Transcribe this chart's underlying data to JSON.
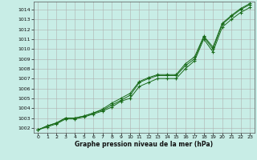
{
  "x": [
    0,
    1,
    2,
    3,
    4,
    5,
    6,
    7,
    8,
    9,
    10,
    11,
    12,
    13,
    14,
    15,
    16,
    17,
    18,
    19,
    20,
    21,
    22,
    23
  ],
  "line1": [
    1001.8,
    1002.2,
    1002.5,
    1003.0,
    1003.0,
    1003.2,
    1003.5,
    1003.8,
    1004.3,
    1004.8,
    1005.3,
    1006.6,
    1007.0,
    1007.3,
    1007.3,
    1007.3,
    1008.3,
    1009.0,
    1011.2,
    1010.0,
    1012.5,
    1013.3,
    1014.0,
    1014.5
  ],
  "line2": [
    1001.8,
    1002.2,
    1002.5,
    1003.0,
    1003.0,
    1003.2,
    1003.5,
    1003.9,
    1004.5,
    1005.0,
    1005.5,
    1006.7,
    1007.1,
    1007.4,
    1007.4,
    1007.4,
    1008.5,
    1009.2,
    1011.3,
    1010.2,
    1012.6,
    1013.4,
    1014.1,
    1014.6
  ],
  "line3": [
    1001.8,
    1002.1,
    1002.4,
    1002.9,
    1002.9,
    1003.1,
    1003.4,
    1003.7,
    1004.1,
    1004.7,
    1005.0,
    1006.2,
    1006.6,
    1007.0,
    1007.0,
    1007.0,
    1008.0,
    1008.8,
    1011.0,
    1009.7,
    1012.2,
    1013.0,
    1013.7,
    1014.2
  ],
  "line_color": "#1a6b1a",
  "bg_color": "#c8ede6",
  "grid_color": "#b0b0b0",
  "xlabel": "Graphe pression niveau de la mer (hPa)",
  "ylim": [
    1001.5,
    1014.8
  ],
  "xlim": [
    -0.5,
    23.5
  ],
  "yticks": [
    1002,
    1003,
    1004,
    1005,
    1006,
    1007,
    1008,
    1009,
    1010,
    1011,
    1012,
    1013,
    1014
  ],
  "xticks": [
    0,
    1,
    2,
    3,
    4,
    5,
    6,
    7,
    8,
    9,
    10,
    11,
    12,
    13,
    14,
    15,
    16,
    17,
    18,
    19,
    20,
    21,
    22,
    23
  ]
}
